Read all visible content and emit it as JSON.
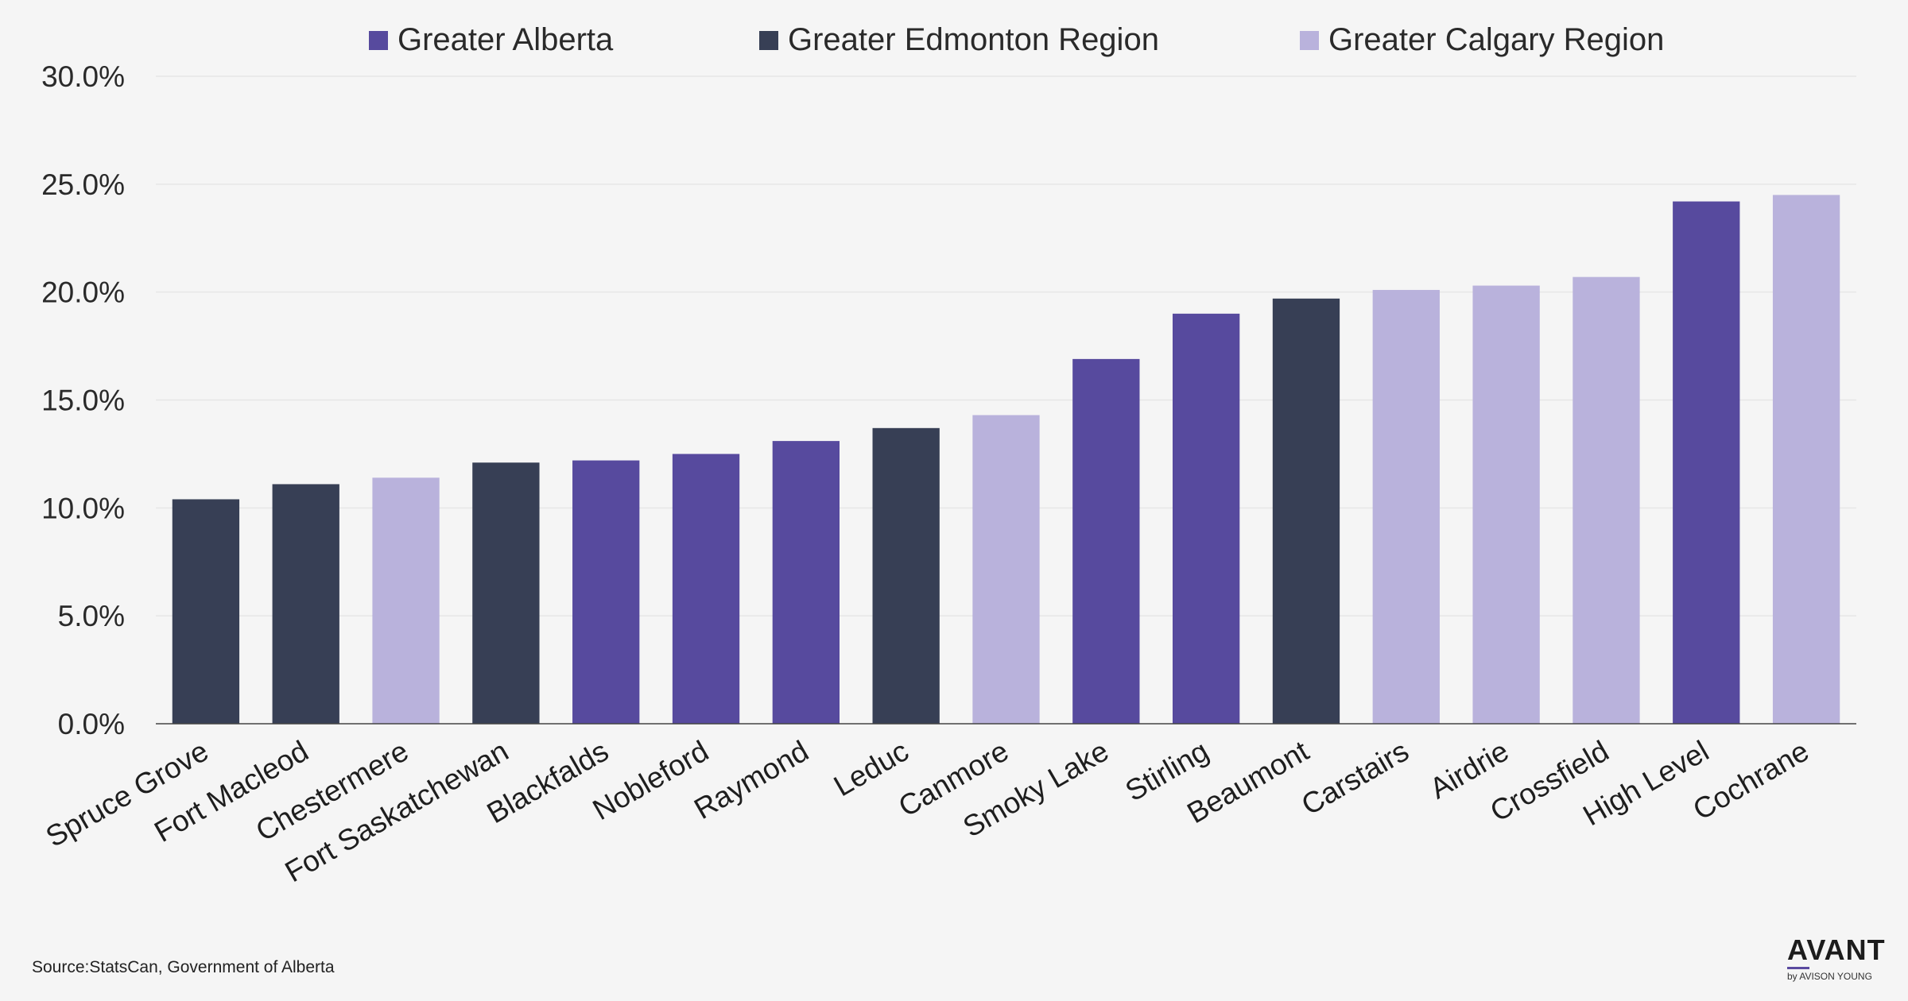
{
  "chart_data": {
    "type": "bar",
    "categories": [
      "Spruce Grove",
      "Fort Macleod",
      "Chestermere",
      "Fort Saskatchewan",
      "Blackfalds",
      "Nobleford",
      "Raymond",
      "Leduc",
      "Canmore",
      "Smoky Lake",
      "Stirling",
      "Beaumont",
      "Carstairs",
      "Airdrie",
      "Crossfield",
      "High Level",
      "Cochrane"
    ],
    "values": [
      10.4,
      11.1,
      11.4,
      12.1,
      12.2,
      12.5,
      13.1,
      13.7,
      14.3,
      16.9,
      19.0,
      19.7,
      20.1,
      20.3,
      20.7,
      24.2,
      24.5
    ],
    "regions": [
      "Greater Edmonton Region",
      "Greater Edmonton Region",
      "Greater Calgary Region",
      "Greater Edmonton Region",
      "Greater Alberta",
      "Greater Alberta",
      "Greater Alberta",
      "Greater Edmonton Region",
      "Greater Calgary Region",
      "Greater Alberta",
      "Greater Alberta",
      "Greater Edmonton Region",
      "Greater Calgary Region",
      "Greater Calgary Region",
      "Greater Calgary Region",
      "Greater Alberta",
      "Greater Calgary Region"
    ],
    "legend": [
      {
        "name": "Greater Alberta",
        "color": "#574a9e"
      },
      {
        "name": "Greater Edmonton Region",
        "color": "#373f55"
      },
      {
        "name": "Greater Calgary Region",
        "color": "#b9b2dc"
      }
    ],
    "y_ticks": [
      "0.0%",
      "5.0%",
      "10.0%",
      "15.0%",
      "20.0%",
      "25.0%",
      "30.0%"
    ],
    "ylim": [
      0,
      30
    ],
    "grid": true,
    "legend_position": "top"
  },
  "source": "Source:StatsCan, Government of Alberta",
  "logo": {
    "main": "AVANT",
    "sub": "by AVISON YOUNG"
  }
}
